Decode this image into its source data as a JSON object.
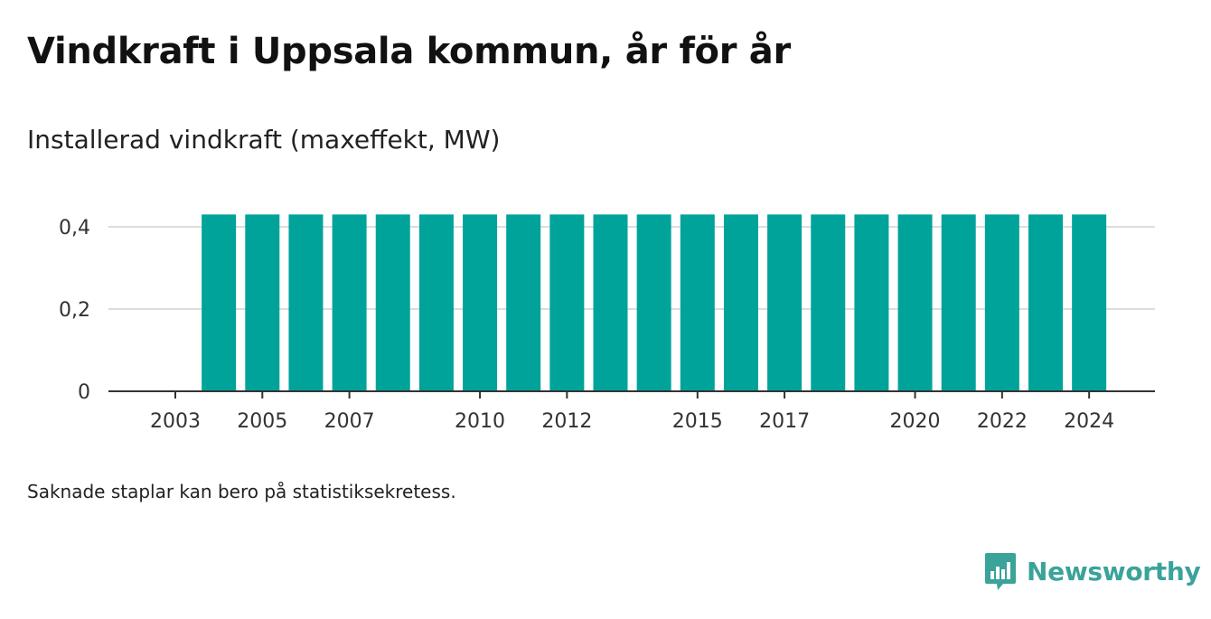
{
  "header": {
    "title": "Vindkraft i Uppsala kommun, år för år",
    "subtitle": "Installerad vindkraft (maxeffekt, MW)"
  },
  "footer": {
    "note": "Saknade staplar kan bero på statistiksekretess.",
    "brand": "Newsworthy"
  },
  "colors": {
    "bar": "#00a39a",
    "brand": "#3aa39a",
    "grid": "#dddddd",
    "axis": "#333333"
  },
  "chart_data": {
    "type": "bar",
    "categories": [
      "2004",
      "2005",
      "2006",
      "2007",
      "2008",
      "2009",
      "2010",
      "2011",
      "2012",
      "2013",
      "2014",
      "2015",
      "2016",
      "2017",
      "2018",
      "2019",
      "2020",
      "2021",
      "2022",
      "2023",
      "2024"
    ],
    "values": [
      0.43,
      0.43,
      0.43,
      0.43,
      0.43,
      0.43,
      0.43,
      0.43,
      0.43,
      0.43,
      0.43,
      0.43,
      0.43,
      0.43,
      0.43,
      0.43,
      0.43,
      0.43,
      0.43,
      0.43,
      0.43
    ],
    "x_domain": [
      2002,
      2025
    ],
    "x_ticks": [
      "2003",
      "2005",
      "2007",
      "2010",
      "2012",
      "2015",
      "2017",
      "2020",
      "2022",
      "2024"
    ],
    "y_ticks": [
      0,
      0.2,
      0.4
    ],
    "y_tick_labels": [
      "0",
      "0,2",
      "0,4"
    ],
    "ylim": [
      0,
      0.45
    ],
    "grid": true,
    "legend": "none"
  }
}
